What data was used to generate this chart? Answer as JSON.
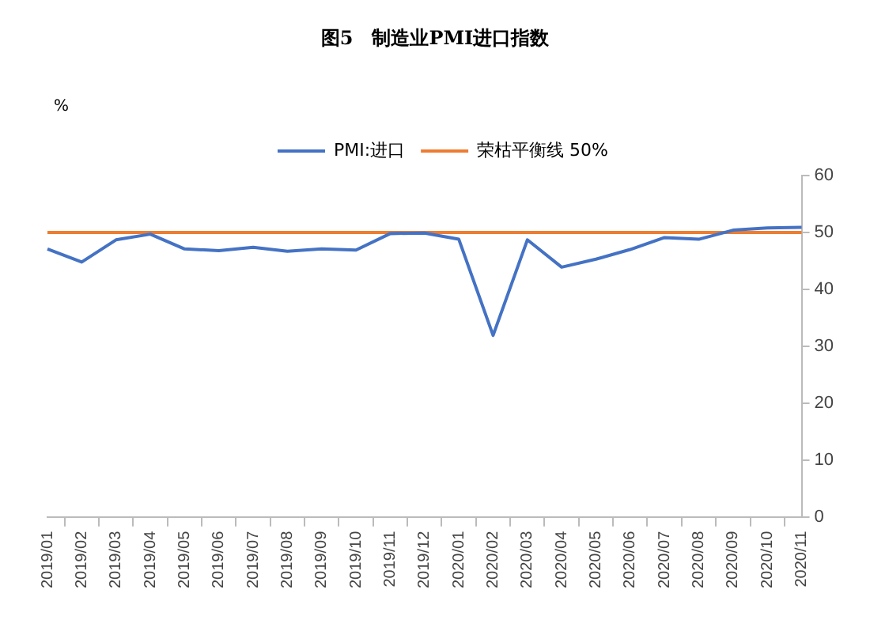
{
  "chart_data": {
    "type": "line",
    "title": "图5　制造业PMI进口指数",
    "ylabel": "%",
    "categories": [
      "2019/01",
      "2019/02",
      "2019/03",
      "2019/04",
      "2019/05",
      "2019/06",
      "2019/07",
      "2019/08",
      "2019/09",
      "2019/10",
      "2019/11",
      "2019/12",
      "2020/01",
      "2020/02",
      "2020/03",
      "2020/04",
      "2020/05",
      "2020/06",
      "2020/07",
      "2020/08",
      "2020/09",
      "2020/10",
      "2020/11"
    ],
    "series": [
      {
        "name": "PMI:进口",
        "color": "#4472c4",
        "values": [
          47.1,
          44.8,
          48.7,
          49.7,
          47.1,
          46.8,
          47.4,
          46.7,
          47.1,
          46.9,
          49.8,
          49.9,
          48.8,
          31.9,
          48.7,
          43.9,
          45.3,
          47.0,
          49.1,
          48.8,
          50.4,
          50.8,
          50.9
        ]
      },
      {
        "name": "荣枯平衡线 50%",
        "color": "#ed7d31",
        "values": [
          50,
          50,
          50,
          50,
          50,
          50,
          50,
          50,
          50,
          50,
          50,
          50,
          50,
          50,
          50,
          50,
          50,
          50,
          50,
          50,
          50,
          50,
          50
        ]
      }
    ],
    "ylim": [
      0,
      60
    ],
    "yticks": [
      0,
      10,
      20,
      30,
      40,
      50,
      60
    ],
    "grid": false,
    "legend": "top",
    "marker": "none",
    "line_style": "solid"
  }
}
